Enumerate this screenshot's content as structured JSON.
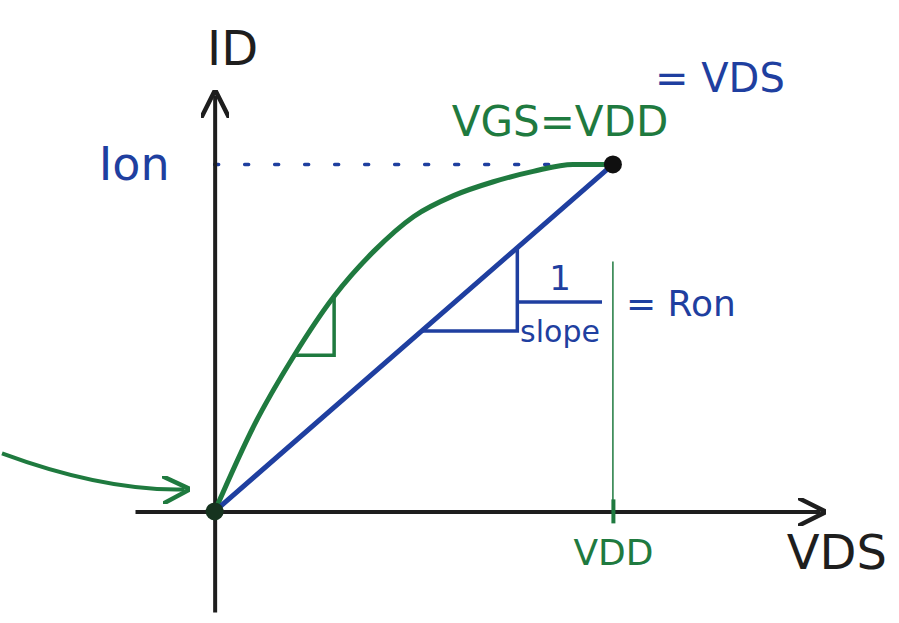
{
  "chart_data": {
    "type": "line",
    "x_label": "VDS",
    "y_label": "ID",
    "xlim": [
      -0.2,
      1.52
    ],
    "ylim": [
      -0.29,
      1.2
    ],
    "xticks": [
      {
        "value": 1,
        "label": "VDD"
      }
    ],
    "yticks": [
      {
        "value": 1,
        "label": "Ion"
      }
    ],
    "grid": true,
    "series": [
      {
        "color": "#1f7a3f",
        "line_style": "solid",
        "x": [
          0,
          0.1,
          0.2,
          0.3,
          0.4,
          0.5,
          0.6,
          0.7,
          0.8,
          0.9,
          1.0
        ],
        "values": [
          0,
          0.25,
          0.45,
          0.62,
          0.75,
          0.85,
          0.91,
          0.95,
          0.98,
          1.0,
          1.0
        ]
      },
      {
        "color": "#1f3fa0",
        "line_style": "solid",
        "marker": "circle",
        "x": [
          0,
          1
        ],
        "values": [
          0,
          1
        ]
      }
    ],
    "annotations": [
      {
        "text": "VGS=VDD",
        "color": "#1f7a3f"
      },
      {
        "text": "= VDS",
        "color": "#1f3fa0"
      },
      {
        "text": "1",
        "color": "#1f3fa0"
      },
      {
        "text": "slope",
        "color": "#1f3fa0"
      },
      {
        "text": "= Ron",
        "color": "#1f3fa0"
      }
    ]
  }
}
